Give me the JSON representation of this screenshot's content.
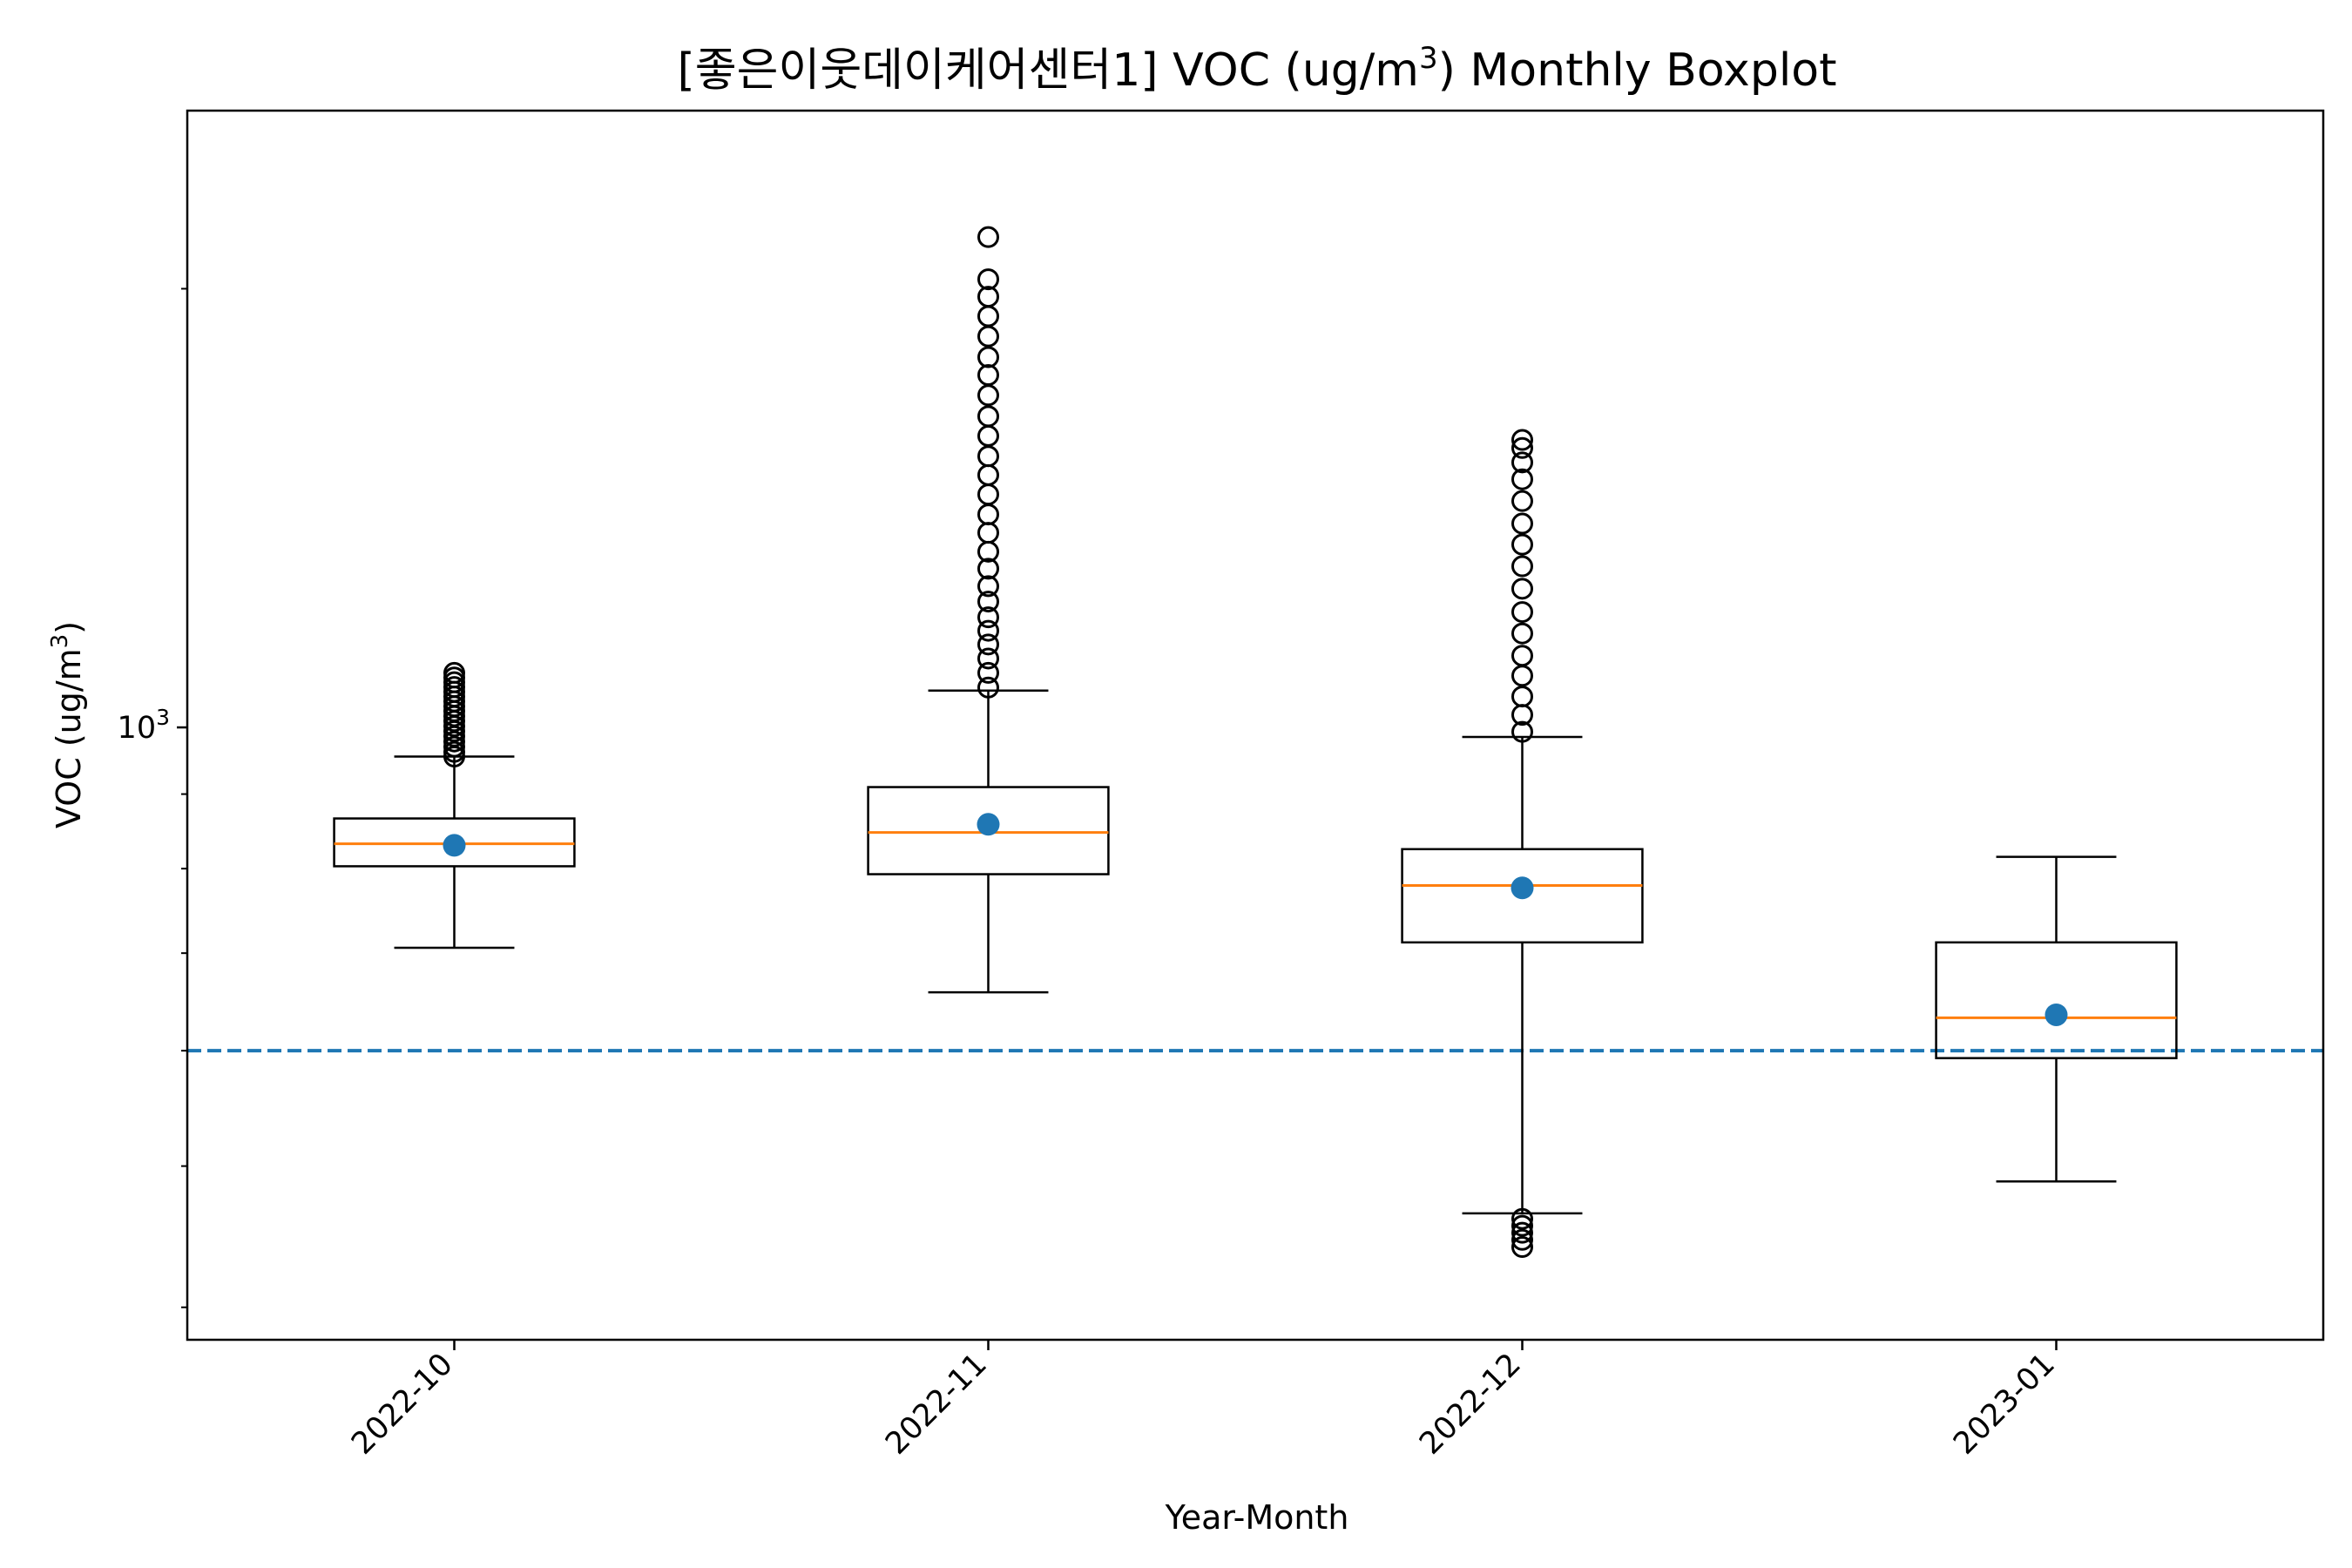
{
  "chart_data": {
    "type": "boxplot",
    "title_main": "[좋은이웃데이케어센터1] VOC (ug/m",
    "title_sup": "3",
    "title_tail": ") Monthly Boxplot",
    "xlabel": "Year-Month",
    "ylabel_main": "VOC (ug/m",
    "ylabel_sup": "3",
    "ylabel_tail": ")",
    "yscale": "log",
    "ylim": [
      380,
      2650
    ],
    "yticks": [
      {
        "value": 1000,
        "base": "10",
        "exp": "3"
      }
    ],
    "reference_line": {
      "value": 600,
      "style": "dashed",
      "color": "#1f77b4"
    },
    "categories": [
      "2022-10",
      "2022-11",
      "2022-12",
      "2023-01"
    ],
    "boxes": [
      {
        "category": "2022-10",
        "whisker_low": 706,
        "q1": 803,
        "median": 832,
        "q3": 866,
        "whisker_high": 955,
        "mean": 830,
        "outliers": [
          955,
          962,
          970,
          978,
          986,
          994,
          1002,
          1010,
          1018,
          1026,
          1034,
          1042,
          1050,
          1058,
          1066,
          1074,
          1082,
          1090
        ]
      },
      {
        "category": "2022-11",
        "whisker_low": 658,
        "q1": 793,
        "median": 847,
        "q3": 910,
        "whisker_high": 1060,
        "mean": 858,
        "outliers": [
          1065,
          1090,
          1115,
          1140,
          1165,
          1190,
          1220,
          1250,
          1285,
          1320,
          1360,
          1400,
          1445,
          1490,
          1535,
          1585,
          1635,
          1690,
          1745,
          1795,
          1855,
          1915,
          1975,
          2030,
          2170
        ]
      },
      {
        "category": "2022-12",
        "whisker_low": 464,
        "q1": 712,
        "median": 779,
        "q3": 825,
        "whisker_high": 985,
        "mean": 776,
        "outliers": [
          440,
          445,
          450,
          455,
          460,
          993,
          1020,
          1050,
          1085,
          1120,
          1160,
          1200,
          1245,
          1290,
          1335,
          1380,
          1430,
          1480,
          1520,
          1555,
          1575
        ]
      },
      {
        "category": "2023-01",
        "whisker_low": 488,
        "q1": 593,
        "median": 632,
        "q3": 712,
        "whisker_high": 815,
        "mean": 635,
        "outliers": []
      }
    ],
    "colors": {
      "box": "#000000",
      "median": "#ff7f0e",
      "mean": "#1f77b4",
      "reference": "#1f77b4",
      "outlier": "#000000"
    },
    "grid": false,
    "legend": "none"
  }
}
